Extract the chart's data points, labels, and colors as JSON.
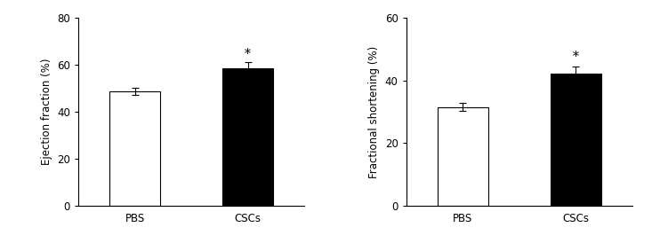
{
  "left_chart": {
    "categories": [
      "PBS",
      "CSCs"
    ],
    "values": [
      48.5,
      58.5
    ],
    "errors": [
      1.5,
      2.5
    ],
    "colors": [
      "#ffffff",
      "#000000"
    ],
    "ylabel": "Ejection fraction (%)",
    "ylim": [
      0,
      80
    ],
    "yticks": [
      0,
      20,
      40,
      60,
      80
    ],
    "significance": [
      false,
      true
    ]
  },
  "right_chart": {
    "categories": [
      "PBS",
      "CSCs"
    ],
    "values": [
      31.5,
      42.0
    ],
    "errors": [
      1.2,
      2.5
    ],
    "colors": [
      "#ffffff",
      "#000000"
    ],
    "ylabel": "Fractional shortening (%)",
    "ylim": [
      0,
      60
    ],
    "yticks": [
      0,
      20,
      40,
      60
    ],
    "significance": [
      false,
      true
    ]
  },
  "bar_width": 0.45,
  "edge_color": "#000000",
  "star_fontsize": 10,
  "label_fontsize": 8.5,
  "tick_fontsize": 8.5,
  "ylabel_fontsize": 8.5,
  "background_color": "#ffffff"
}
